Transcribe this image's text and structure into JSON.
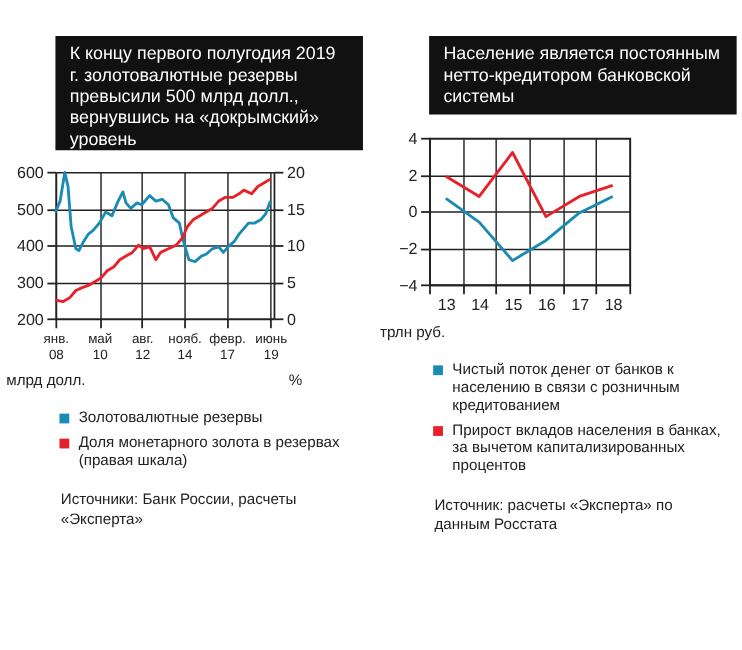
{
  "chart_data": [
    {
      "type": "line",
      "title": "К концу первого полугодия 2019 г. золотовалютные резервы превысили 500 млрд долл., вернувшись на «докрымский» уровень",
      "ylabel": "млрд долл.",
      "y2label": "%",
      "xlim": [
        "2008-01-01",
        "2019-08-01"
      ],
      "xticks": [
        {
          "value": "2008-01-01",
          "label": "янв. 08"
        },
        {
          "value": "2010-05-01",
          "label": "май 10"
        },
        {
          "value": "2012-08-01",
          "label": "авг. 12"
        },
        {
          "value": "2014-11-01",
          "label": "нояб. 14"
        },
        {
          "value": "2017-02-01",
          "label": "февр. 17"
        },
        {
          "value": "2019-06-01",
          "label": "июнь 19"
        }
      ],
      "ylim": [
        200,
        600
      ],
      "yticks": [
        200,
        300,
        400,
        500,
        600
      ],
      "y2lim": [
        0,
        20
      ],
      "y2ticks": [
        0,
        5,
        10,
        15,
        20
      ],
      "grid": true,
      "legend": "bottom",
      "series": [
        {
          "name": "Золотовалютные резервы",
          "color": "#1a8bb5",
          "x": [
            "2008-01-01",
            "2008-04-01",
            "2008-07-01",
            "2008-09-01",
            "2008-11-01",
            "2009-02-01",
            "2009-04-01",
            "2009-07-01",
            "2009-10-01",
            "2010-01-01",
            "2010-05-01",
            "2010-09-01",
            "2011-01-01",
            "2011-05-01",
            "2011-08-01",
            "2011-10-01",
            "2012-01-01",
            "2012-05-01",
            "2012-08-01",
            "2013-01-01",
            "2013-05-01",
            "2013-09-01",
            "2014-01-01",
            "2014-04-01",
            "2014-08-01",
            "2014-10-01",
            "2014-12-01",
            "2015-02-01",
            "2015-06-01",
            "2015-10-01",
            "2016-01-01",
            "2016-05-01",
            "2016-09-01",
            "2016-12-01",
            "2017-03-01",
            "2017-07-01",
            "2017-10-01",
            "2018-01-01",
            "2018-04-01",
            "2018-08-01",
            "2018-12-01",
            "2019-03-01",
            "2019-06-01"
          ],
          "values": [
            490,
            520,
            598,
            560,
            450,
            390,
            385,
            410,
            430,
            440,
            460,
            490,
            480,
            520,
            545,
            515,
            500,
            515,
            510,
            535,
            520,
            525,
            510,
            475,
            460,
            420,
            390,
            360,
            355,
            370,
            375,
            390,
            395,
            380,
            395,
            410,
            430,
            445,
            460,
            460,
            470,
            485,
            520
          ]
        },
        {
          "name": "Доля монетарного золота в резервах (правая шкала)",
          "color": "#e8202a",
          "axis": "y2",
          "x": [
            "2008-01-01",
            "2008-06-01",
            "2008-10-01",
            "2009-02-01",
            "2009-06-01",
            "2009-10-01",
            "2010-02-01",
            "2010-06-01",
            "2010-10-01",
            "2011-02-01",
            "2011-06-01",
            "2011-10-01",
            "2012-02-01",
            "2012-06-01",
            "2012-09-01",
            "2013-01-01",
            "2013-05-01",
            "2013-08-01",
            "2014-01-01",
            "2014-06-01",
            "2014-10-01",
            "2015-01-01",
            "2015-05-01",
            "2015-09-01",
            "2016-01-01",
            "2016-05-01",
            "2016-09-01",
            "2017-01-01",
            "2017-06-01",
            "2017-10-01",
            "2018-01-01",
            "2018-06-01",
            "2018-10-01",
            "2019-02-01",
            "2019-06-01"
          ],
          "values": [
            2.5,
            2.3,
            2.8,
            3.8,
            4.2,
            4.5,
            5,
            5.5,
            6.5,
            7,
            8,
            8.5,
            9,
            10,
            9.5,
            9.8,
            8,
            9,
            9.5,
            10,
            11,
            12.5,
            13.5,
            14,
            14.5,
            15,
            16,
            16.5,
            16.5,
            17,
            17.5,
            17,
            18,
            18.5,
            19
          ]
        }
      ],
      "annotations": [
        "Источники: Банк России, расчеты «Эксперта»"
      ]
    },
    {
      "type": "line",
      "title": "Население является постоянным нетто-кредитором банковской системы",
      "ylabel": "трлн руб.",
      "categories": [
        "13",
        "14",
        "15",
        "16",
        "17",
        "18"
      ],
      "ylim": [
        -4,
        4
      ],
      "yticks": [
        -4,
        -2,
        0,
        2,
        4
      ],
      "grid": true,
      "legend": "bottom",
      "series": [
        {
          "name": "Чистый поток денег от банков к населению в связи с розничным кредитованием",
          "color": "#1a8bb5",
          "values": [
            0.7,
            -0.6,
            -2.7,
            -1.6,
            -0.1,
            0.8
          ]
        },
        {
          "name": "Прирост вкладов населения в банках, за вычетом капитализированных процентов",
          "color": "#e8202a",
          "values": [
            1.9,
            0.8,
            3.2,
            -0.3,
            0.8,
            1.4
          ]
        }
      ],
      "annotations": [
        "Источник: расчеты «Эксперта» по данным Росстата"
      ]
    }
  ]
}
